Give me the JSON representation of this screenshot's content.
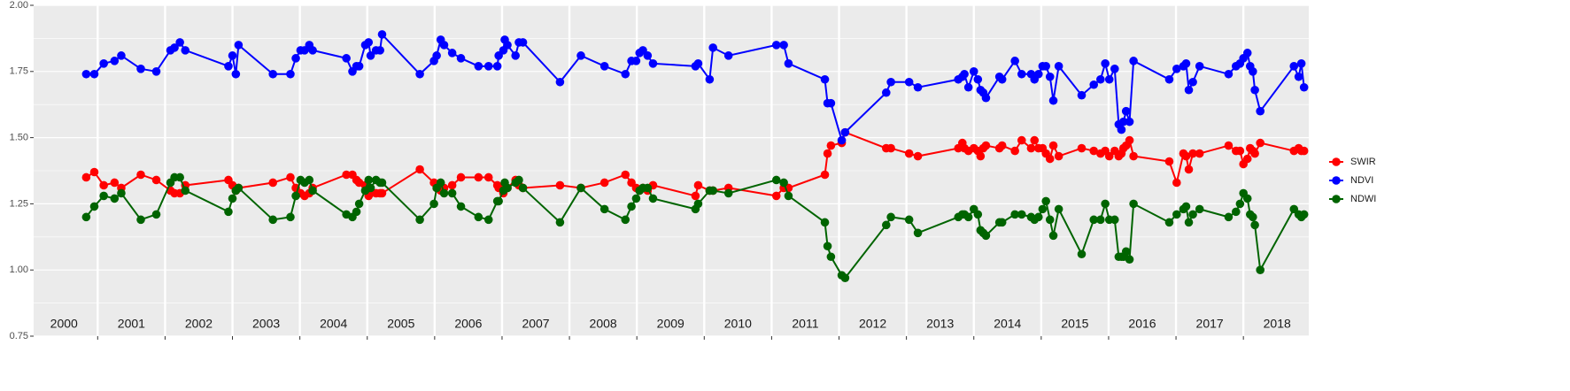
{
  "chart_data": {
    "type": "line",
    "x": [
      2000.83,
      2000.95,
      2001.09,
      2001.25,
      2001.35,
      2001.64,
      2001.87,
      2002.08,
      2002.14,
      2002.22,
      2002.3,
      2002.94,
      2003.0,
      2003.05,
      2003.09,
      2003.6,
      2003.86,
      2003.94,
      2004.01,
      2004.07,
      2004.14,
      2004.19,
      2004.69,
      2004.78,
      2004.84,
      2004.88,
      2004.97,
      2005.02,
      2005.05,
      2005.13,
      2005.19,
      2005.22,
      2005.78,
      2005.99,
      2006.03,
      2006.09,
      2006.14,
      2006.26,
      2006.39,
      2006.65,
      2006.8,
      2006.93,
      2006.95,
      2007.02,
      2007.04,
      2007.08,
      2007.2,
      2007.25,
      2007.31,
      2007.86,
      2008.17,
      2008.52,
      2008.83,
      2008.92,
      2008.99,
      2009.04,
      2009.09,
      2009.16,
      2009.24,
      2009.87,
      2009.91,
      2010.08,
      2010.13,
      2010.36,
      2011.07,
      2011.18,
      2011.25,
      2011.79,
      2011.83,
      2011.88,
      2012.04,
      2012.09,
      2012.7,
      2012.77,
      2013.04,
      2013.17,
      2013.77,
      2013.83,
      2013.86,
      2013.92,
      2014.0,
      2014.06,
      2014.1,
      2014.14,
      2014.18,
      2014.38,
      2014.42,
      2014.61,
      2014.71,
      2014.85,
      2014.9,
      2014.96,
      2015.02,
      2015.07,
      2015.13,
      2015.18,
      2015.26,
      2015.6,
      2015.78,
      2015.88,
      2015.95,
      2016.01,
      2016.09,
      2016.15,
      2016.19,
      2016.22,
      2016.26,
      2016.31,
      2016.37,
      2016.9,
      2017.01,
      2017.11,
      2017.15,
      2017.19,
      2017.25,
      2017.35,
      2017.78,
      2017.89,
      2017.95,
      2018.0,
      2018.06,
      2018.1,
      2018.14,
      2018.17,
      2018.25,
      2018.75,
      2018.82,
      2018.86,
      2018.9
    ],
    "series": [
      {
        "name": "SWIR",
        "color": "#ff0000",
        "values": [
          1.35,
          1.37,
          1.32,
          1.33,
          1.31,
          1.36,
          1.34,
          1.3,
          1.29,
          1.29,
          1.32,
          1.34,
          1.32,
          1.3,
          1.31,
          1.33,
          1.35,
          1.31,
          1.29,
          1.28,
          1.29,
          1.31,
          1.36,
          1.36,
          1.34,
          1.33,
          1.32,
          1.28,
          1.29,
          1.29,
          1.29,
          1.29,
          1.38,
          1.33,
          1.31,
          1.3,
          1.31,
          1.32,
          1.35,
          1.35,
          1.35,
          1.32,
          1.31,
          1.29,
          1.32,
          1.31,
          1.34,
          1.32,
          1.31,
          1.32,
          1.31,
          1.33,
          1.36,
          1.33,
          1.31,
          1.3,
          1.31,
          1.3,
          1.32,
          1.28,
          1.32,
          1.3,
          1.3,
          1.31,
          1.28,
          1.31,
          1.31,
          1.36,
          1.44,
          1.47,
          1.48,
          1.52,
          1.46,
          1.46,
          1.44,
          1.43,
          1.46,
          1.48,
          1.46,
          1.45,
          1.46,
          1.45,
          1.43,
          1.46,
          1.47,
          1.46,
          1.47,
          1.45,
          1.49,
          1.46,
          1.49,
          1.46,
          1.46,
          1.44,
          1.42,
          1.47,
          1.43,
          1.46,
          1.45,
          1.44,
          1.45,
          1.43,
          1.45,
          1.43,
          1.44,
          1.46,
          1.47,
          1.49,
          1.43,
          1.41,
          1.33,
          1.44,
          1.43,
          1.38,
          1.44,
          1.44,
          1.47,
          1.45,
          1.45,
          1.4,
          1.42,
          1.46,
          1.45,
          1.44,
          1.48,
          1.45,
          1.46,
          1.45,
          1.45
        ]
      },
      {
        "name": "NDVI",
        "color": "#0000ff",
        "values": [
          1.74,
          1.74,
          1.78,
          1.79,
          1.81,
          1.76,
          1.75,
          1.83,
          1.84,
          1.86,
          1.83,
          1.77,
          1.81,
          1.74,
          1.85,
          1.74,
          1.74,
          1.8,
          1.83,
          1.83,
          1.85,
          1.83,
          1.8,
          1.75,
          1.77,
          1.77,
          1.85,
          1.86,
          1.81,
          1.83,
          1.83,
          1.89,
          1.74,
          1.79,
          1.81,
          1.87,
          1.85,
          1.82,
          1.8,
          1.77,
          1.77,
          1.77,
          1.81,
          1.83,
          1.87,
          1.85,
          1.81,
          1.86,
          1.86,
          1.71,
          1.81,
          1.77,
          1.74,
          1.79,
          1.79,
          1.82,
          1.83,
          1.81,
          1.78,
          1.77,
          1.78,
          1.72,
          1.84,
          1.81,
          1.85,
          1.85,
          1.78,
          1.72,
          1.63,
          1.63,
          1.49,
          1.52,
          1.67,
          1.71,
          1.71,
          1.69,
          1.72,
          1.73,
          1.74,
          1.69,
          1.75,
          1.72,
          1.68,
          1.67,
          1.65,
          1.73,
          1.72,
          1.79,
          1.74,
          1.74,
          1.72,
          1.74,
          1.77,
          1.77,
          1.73,
          1.64,
          1.77,
          1.66,
          1.7,
          1.72,
          1.78,
          1.72,
          1.76,
          1.55,
          1.53,
          1.56,
          1.6,
          1.56,
          1.79,
          1.72,
          1.76,
          1.77,
          1.78,
          1.68,
          1.71,
          1.77,
          1.74,
          1.77,
          1.78,
          1.8,
          1.82,
          1.77,
          1.75,
          1.68,
          1.6,
          1.77,
          1.73,
          1.78,
          1.69
        ]
      },
      {
        "name": "NDWI",
        "color": "#006400",
        "values": [
          1.2,
          1.24,
          1.28,
          1.27,
          1.29,
          1.19,
          1.21,
          1.33,
          1.35,
          1.35,
          1.3,
          1.22,
          1.27,
          1.3,
          1.31,
          1.19,
          1.2,
          1.28,
          1.34,
          1.33,
          1.34,
          1.3,
          1.21,
          1.2,
          1.22,
          1.25,
          1.3,
          1.34,
          1.31,
          1.34,
          1.33,
          1.33,
          1.19,
          1.25,
          1.31,
          1.33,
          1.29,
          1.29,
          1.24,
          1.2,
          1.19,
          1.26,
          1.26,
          1.3,
          1.33,
          1.31,
          1.33,
          1.34,
          1.31,
          1.18,
          1.31,
          1.23,
          1.19,
          1.24,
          1.27,
          1.3,
          1.31,
          1.31,
          1.27,
          1.23,
          1.25,
          1.3,
          1.3,
          1.29,
          1.34,
          1.33,
          1.28,
          1.18,
          1.09,
          1.05,
          0.98,
          0.97,
          1.17,
          1.2,
          1.19,
          1.14,
          1.2,
          1.21,
          1.21,
          1.2,
          1.23,
          1.21,
          1.15,
          1.14,
          1.13,
          1.18,
          1.18,
          1.21,
          1.21,
          1.2,
          1.19,
          1.2,
          1.23,
          1.26,
          1.19,
          1.13,
          1.23,
          1.06,
          1.19,
          1.19,
          1.25,
          1.19,
          1.19,
          1.05,
          1.05,
          1.05,
          1.07,
          1.04,
          1.25,
          1.18,
          1.21,
          1.23,
          1.24,
          1.18,
          1.21,
          1.23,
          1.2,
          1.22,
          1.25,
          1.29,
          1.27,
          1.21,
          1.2,
          1.17,
          1.0,
          1.23,
          1.21,
          1.2,
          1.21
        ]
      }
    ],
    "xlim": [
      2000.05,
      2018.97
    ],
    "xticks": [
      {
        "value": 2000.5,
        "label": "2000"
      },
      {
        "value": 2001.5,
        "label": "2001"
      },
      {
        "value": 2002.5,
        "label": "2002"
      },
      {
        "value": 2003.5,
        "label": "2003"
      },
      {
        "value": 2004.5,
        "label": "2004"
      },
      {
        "value": 2005.5,
        "label": "2005"
      },
      {
        "value": 2006.5,
        "label": "2006"
      },
      {
        "value": 2007.5,
        "label": "2007"
      },
      {
        "value": 2008.5,
        "label": "2008"
      },
      {
        "value": 2009.5,
        "label": "2009"
      },
      {
        "value": 2010.5,
        "label": "2010"
      },
      {
        "value": 2011.5,
        "label": "2011"
      },
      {
        "value": 2012.5,
        "label": "2012"
      },
      {
        "value": 2013.5,
        "label": "2013"
      },
      {
        "value": 2014.5,
        "label": "2014"
      },
      {
        "value": 2015.5,
        "label": "2015"
      },
      {
        "value": 2016.5,
        "label": "2016"
      },
      {
        "value": 2017.5,
        "label": "2017"
      },
      {
        "value": 2018.5,
        "label": "2018"
      }
    ],
    "xgrid": [
      2001,
      2002,
      2003,
      2004,
      2005,
      2006,
      2007,
      2008,
      2009,
      2010,
      2011,
      2012,
      2013,
      2014,
      2015,
      2016,
      2017,
      2018
    ],
    "ylim": [
      0.75,
      2.0
    ],
    "yticks": [
      {
        "value": 0.75,
        "label": "0.75"
      },
      {
        "value": 1.0,
        "label": "1.00"
      },
      {
        "value": 1.25,
        "label": "1.25"
      },
      {
        "value": 1.5,
        "label": "1.50"
      },
      {
        "value": 1.75,
        "label": "1.75"
      },
      {
        "value": 2.0,
        "label": "2.00"
      }
    ],
    "grid": true,
    "legend": "right"
  }
}
